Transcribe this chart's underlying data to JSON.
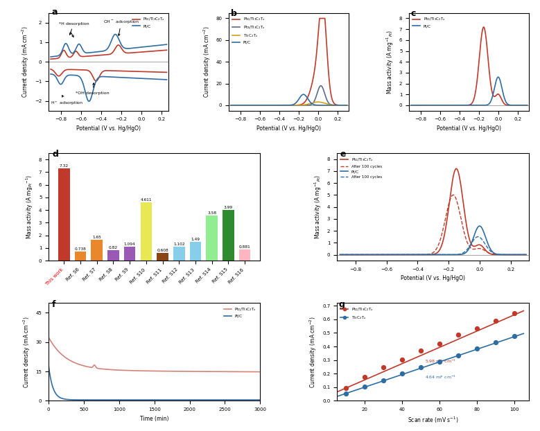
{
  "colors": {
    "ptc_ti3c2tx": "#c0392b",
    "pts_ti3c2tx": "#5b6b8a",
    "ti3c2tx": "#d4a017",
    "ptc": "#2e6da4",
    "red_dashed": "#c0392b",
    "blue_dashed": "#2e6da4"
  },
  "bar_categories": [
    "This work",
    "Ref. S6",
    "Ref. S7",
    "Ref. S8",
    "Ref. S9",
    "Ref. S10",
    "Ref. S11",
    "Ref. S12",
    "Ref. S13",
    "Ref. S14",
    "Ref. S15",
    "Ref. S16"
  ],
  "bar_values": [
    7.32,
    0.738,
    1.65,
    0.82,
    1.094,
    4.611,
    0.608,
    1.102,
    1.49,
    3.58,
    3.99,
    0.881
  ],
  "bar_colors": [
    "#c0392b",
    "#e8872b",
    "#e8872b",
    "#9b59b6",
    "#9b59b6",
    "#e8e854",
    "#8B4513",
    "#87CEEB",
    "#87CEEB",
    "#90EE90",
    "#2e8b2e",
    "#ffb6c1"
  ],
  "g_scan_rates": [
    10,
    20,
    30,
    40,
    50,
    60,
    70,
    80,
    90,
    100
  ],
  "g_ptc_values": [
    0.095,
    0.178,
    0.248,
    0.305,
    0.37,
    0.42,
    0.485,
    0.535,
    0.59,
    0.645
  ],
  "g_ti3c2tx_values": [
    0.055,
    0.105,
    0.15,
    0.2,
    0.245,
    0.29,
    0.335,
    0.385,
    0.43,
    0.475
  ],
  "g_ptc_slope": 5.98,
  "g_ti3c2tx_slope": 4.64
}
